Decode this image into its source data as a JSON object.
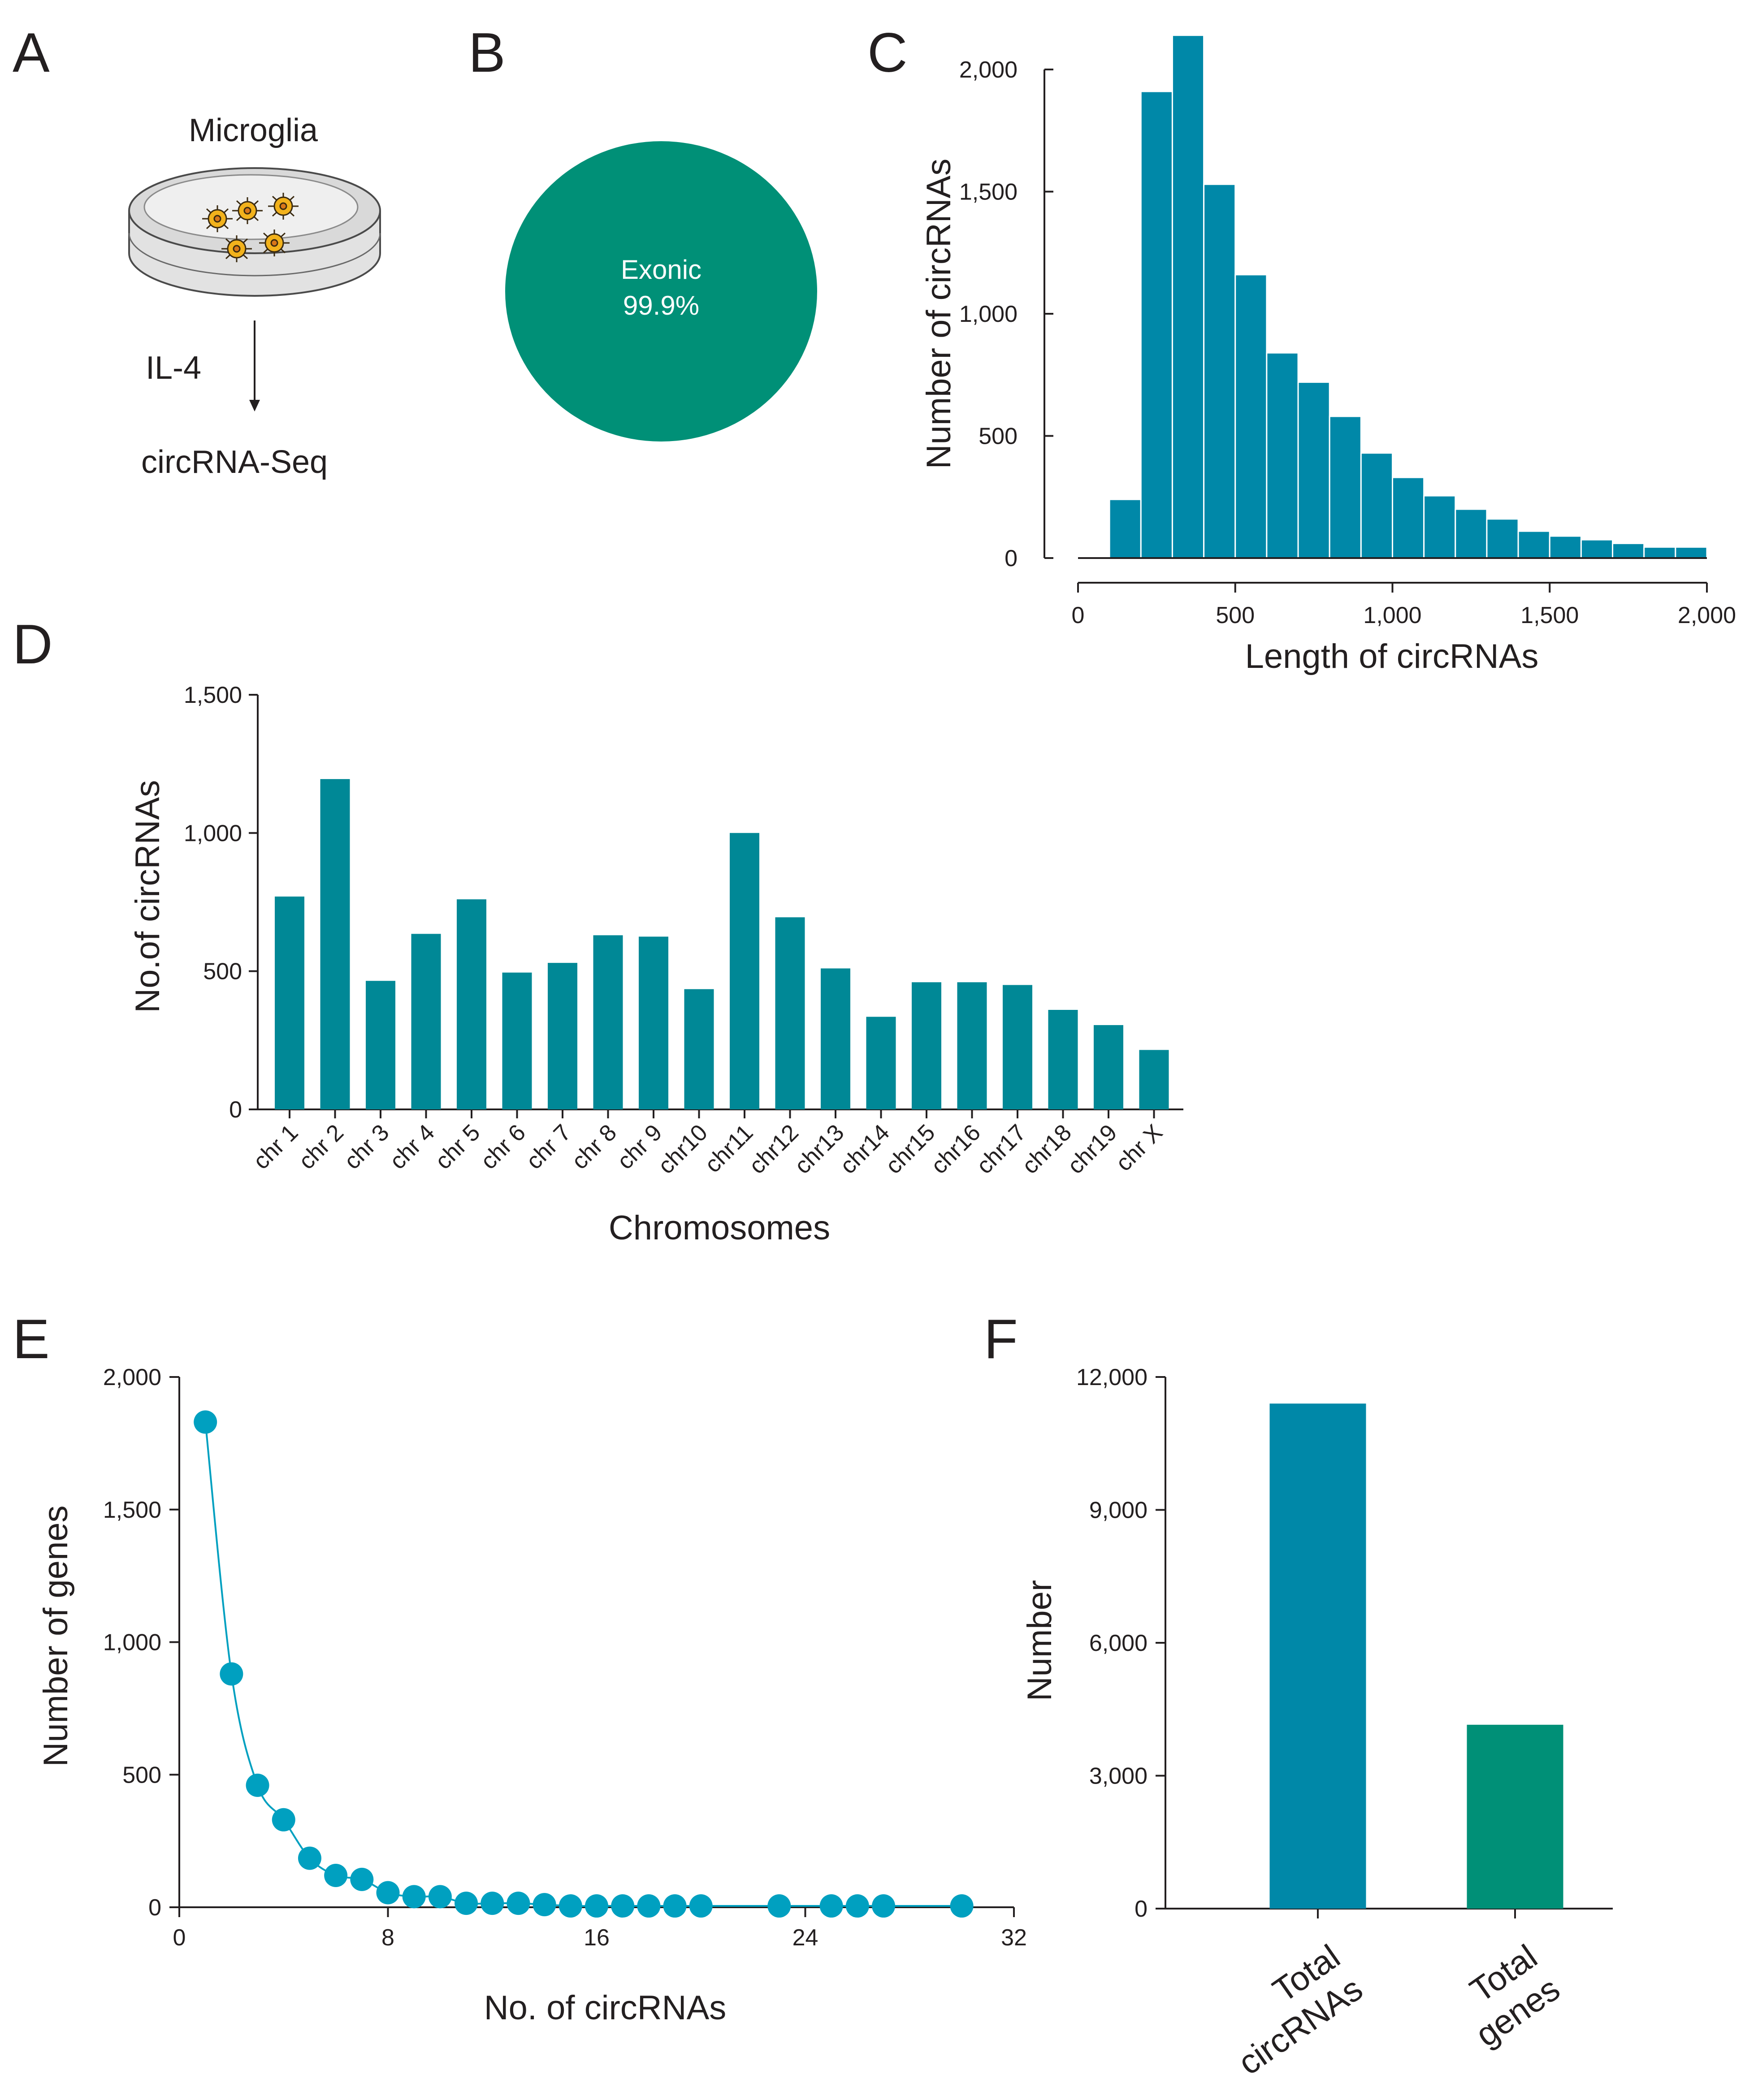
{
  "colors": {
    "teal_blue": "#0088a8",
    "teal_green": "#009077",
    "dark_teal": "#008896",
    "point": "#00a0c0",
    "axis": "#231f20"
  },
  "panels": {
    "A": {
      "letter": "A",
      "title": "Microglia",
      "treatment": "IL-4",
      "method": "circRNA-Seq",
      "dish_icon": "petri-dish-icon",
      "cell_icon": "microglia-cell-icon"
    },
    "B": {
      "letter": "B"
    },
    "C": {
      "letter": "C"
    },
    "D": {
      "letter": "D"
    },
    "E": {
      "letter": "E"
    },
    "F": {
      "letter": "F"
    }
  },
  "chart_data": [
    {
      "panel": "B",
      "type": "pie",
      "slices": [
        {
          "label": "Exonic",
          "value": 99.9,
          "value_label": "99.9%"
        }
      ]
    },
    {
      "panel": "C",
      "type": "bar",
      "subtype": "histogram",
      "xlabel": "Length of circRNAs",
      "ylabel": "Number of circRNAs",
      "xlim": [
        0,
        2000
      ],
      "ylim": [
        0,
        2000
      ],
      "xticks": [
        0,
        500,
        1000,
        1500,
        2000
      ],
      "xtick_labels": [
        "0",
        "500",
        "1,000",
        "1,500",
        "2,000"
      ],
      "yticks": [
        0,
        500,
        1000,
        1500,
        2000
      ],
      "ytick_labels": [
        "0",
        "500",
        "1,000",
        "1,500",
        "2,000"
      ],
      "bin_width": 100,
      "bin_starts": [
        100,
        200,
        300,
        400,
        500,
        600,
        700,
        800,
        900,
        1000,
        1100,
        1200,
        1300,
        1400,
        1500,
        1600,
        1700,
        1800,
        1900
      ],
      "values": [
        240,
        1910,
        2140,
        1530,
        1160,
        840,
        720,
        580,
        430,
        330,
        255,
        200,
        160,
        110,
        90,
        75,
        60,
        45,
        45
      ]
    },
    {
      "panel": "D",
      "type": "bar",
      "xlabel": "Chromosomes",
      "ylabel": "No.of circRNAs",
      "ylim": [
        0,
        1500
      ],
      "yticks": [
        0,
        500,
        1000,
        1500
      ],
      "ytick_labels": [
        "0",
        "500",
        "1,000",
        "1,500"
      ],
      "categories": [
        "chr 1",
        "chr 2",
        "chr 3",
        "chr 4",
        "chr 5",
        "chr 6",
        "chr 7",
        "chr 8",
        "chr 9",
        "chr10",
        "chr11",
        "chr12",
        "chr13",
        "chr14",
        "chr15",
        "chr16",
        "chr17",
        "chr18",
        "chr19",
        "chr X"
      ],
      "values": [
        770,
        1195,
        465,
        635,
        760,
        495,
        530,
        630,
        625,
        435,
        1000,
        695,
        510,
        335,
        460,
        460,
        450,
        360,
        305,
        215
      ]
    },
    {
      "panel": "E",
      "type": "line",
      "markers": true,
      "xlabel": "No. of circRNAs",
      "ylabel": "Number of genes",
      "xlim": [
        0,
        32
      ],
      "ylim": [
        0,
        2000
      ],
      "xticks": [
        0,
        8,
        16,
        24,
        32
      ],
      "xtick_labels": [
        "0",
        "8",
        "16",
        "24",
        "32"
      ],
      "yticks": [
        0,
        500,
        1000,
        1500,
        2000
      ],
      "ytick_labels": [
        "0",
        "500",
        "1,000",
        "1,500",
        "2,000"
      ],
      "x": [
        1,
        2,
        3,
        4,
        5,
        6,
        7,
        8,
        9,
        10,
        11,
        12,
        13,
        14,
        15,
        16,
        17,
        18,
        19,
        20,
        23,
        25,
        26,
        27,
        30
      ],
      "y": [
        1830,
        880,
        460,
        330,
        185,
        120,
        105,
        55,
        40,
        40,
        15,
        15,
        15,
        10,
        5,
        5,
        5,
        5,
        5,
        5,
        5,
        5,
        5,
        5,
        5
      ]
    },
    {
      "panel": "F",
      "type": "bar",
      "xlabel": "",
      "ylabel": "Number",
      "ylim": [
        0,
        12000
      ],
      "yticks": [
        0,
        3000,
        6000,
        9000,
        12000
      ],
      "ytick_labels": [
        "0",
        "3,000",
        "6,000",
        "9,000",
        "12,000"
      ],
      "categories": [
        {
          "line1": "Total",
          "line2": "circRNAs"
        },
        {
          "line1": "Total",
          "line2": "genes"
        }
      ],
      "values": [
        11400,
        4150
      ]
    }
  ]
}
